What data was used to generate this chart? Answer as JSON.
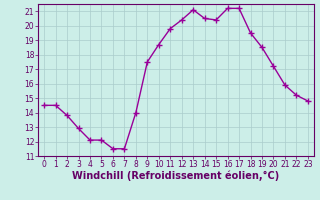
{
  "x": [
    0,
    1,
    2,
    3,
    4,
    5,
    6,
    7,
    8,
    9,
    10,
    11,
    12,
    13,
    14,
    15,
    16,
    17,
    18,
    19,
    20,
    21,
    22,
    23
  ],
  "y": [
    14.5,
    14.5,
    13.8,
    12.9,
    12.1,
    12.1,
    11.5,
    11.5,
    14.0,
    17.5,
    18.7,
    19.8,
    20.4,
    21.1,
    20.5,
    20.4,
    21.2,
    21.2,
    19.5,
    18.5,
    17.2,
    15.9,
    15.2,
    14.8
  ],
  "line_color": "#990099",
  "marker": "+",
  "marker_size": 4,
  "marker_lw": 1.0,
  "bg_color": "#cceee8",
  "grid_color": "#aacccc",
  "xlabel": "Windchill (Refroidissement éolien,°C)",
  "ylim": [
    11,
    21.5
  ],
  "xlim": [
    -0.5,
    23.5
  ],
  "yticks": [
    11,
    12,
    13,
    14,
    15,
    16,
    17,
    18,
    19,
    20,
    21
  ],
  "xticks": [
    0,
    1,
    2,
    3,
    4,
    5,
    6,
    7,
    8,
    9,
    10,
    11,
    12,
    13,
    14,
    15,
    16,
    17,
    18,
    19,
    20,
    21,
    22,
    23
  ],
  "label_color": "#660066",
  "tick_fontsize": 5.5,
  "xlabel_fontsize": 7.0,
  "line_width": 1.0
}
